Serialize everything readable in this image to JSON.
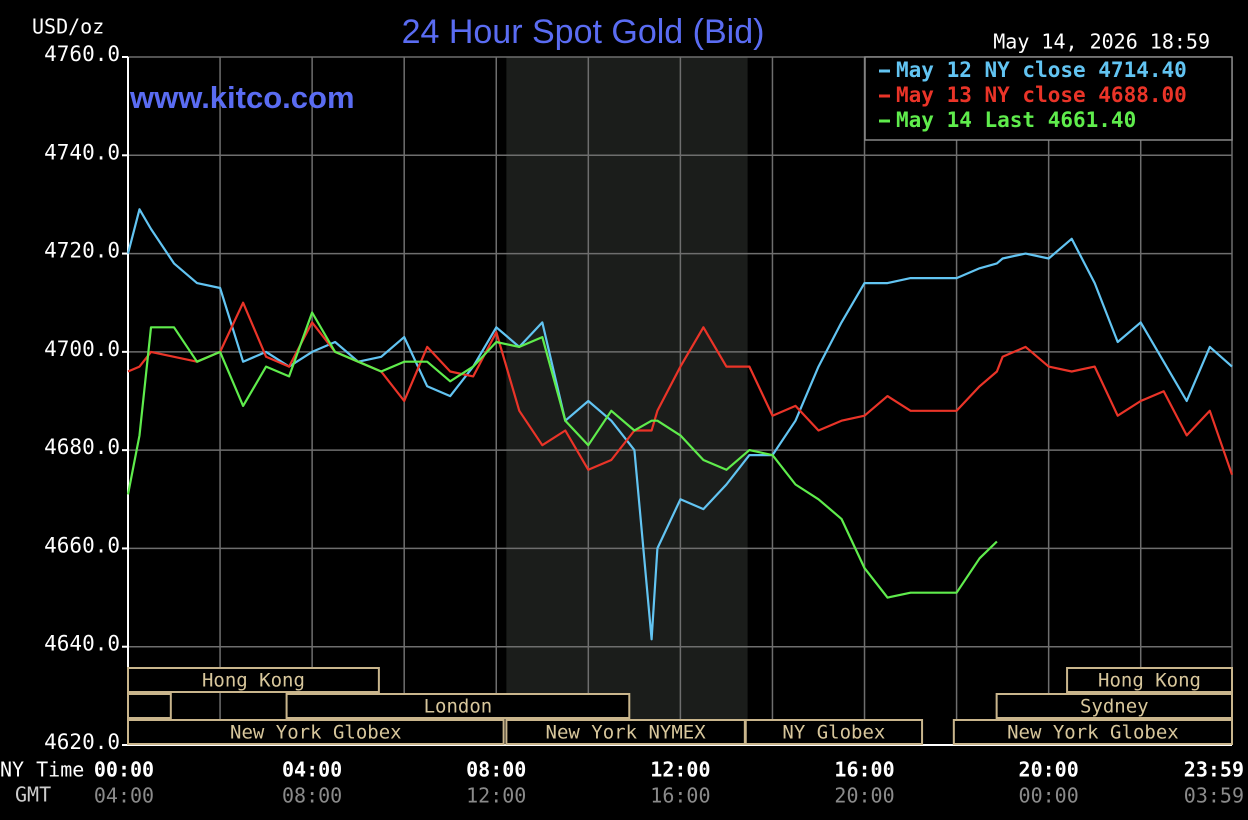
{
  "chart_data": {
    "type": "line",
    "title": "24 Hour Spot Gold (Bid)",
    "ylabel": "USD/oz",
    "timestamp": "May 14, 2026 18:59",
    "watermark": "www.kitco.com",
    "x_row_label": "NY Time",
    "x2_row_label": "GMT",
    "x": [
      0,
      0.25,
      0.5,
      1,
      1.5,
      2,
      2.5,
      3,
      3.5,
      4,
      4.5,
      5,
      5.5,
      6,
      6.5,
      7,
      7.5,
      8,
      8.5,
      9,
      9.5,
      10,
      10.5,
      11,
      11.375,
      11.5,
      12,
      12.5,
      13,
      13.5,
      14,
      14.5,
      15,
      15.5,
      16,
      16.5,
      17,
      17.5,
      18,
      18.5,
      18.875,
      19,
      19.5,
      20,
      20.5,
      21,
      21.5,
      22,
      22.5,
      23,
      23.5,
      23.983
    ],
    "series": [
      {
        "name": "May 12 NY close 4714.40",
        "color": "#62c4f2",
        "values": [
          4720,
          4729,
          4725,
          4718,
          4714,
          4713,
          4698,
          4700,
          4697,
          4700,
          4702,
          4698,
          4699,
          4703,
          4693,
          4691,
          4697,
          4705,
          4701,
          4706,
          4686,
          4690,
          4686,
          4680,
          4641.5,
          4660,
          4670,
          4668,
          4673,
          4679,
          4679,
          4686,
          4697,
          4706,
          4714,
          4714,
          4715,
          4715,
          4715,
          4717,
          4718,
          4719,
          4720,
          4719,
          4723,
          4714,
          4702,
          4706,
          4698,
          4690,
          4701,
          4697
        ]
      },
      {
        "name": "May 13 NY close 4688.00",
        "color": "#ea3428",
        "values": [
          4696,
          4697,
          4700,
          4699,
          4698,
          4700,
          4710,
          4699,
          4697,
          4706,
          4700,
          4698,
          4696,
          4690,
          4701,
          4696,
          4695,
          4704,
          4688,
          4681,
          4684,
          4676,
          4678,
          4684,
          4684,
          4688,
          4697,
          4705,
          4697,
          4697,
          4687,
          4689,
          4684,
          4686,
          4687,
          4691,
          4688,
          4688,
          4688,
          4693,
          4696,
          4699,
          4701,
          4697,
          4696,
          4697,
          4687,
          4690,
          4692,
          4683,
          4688,
          4675
        ]
      },
      {
        "name": "May 14 Last 4661.40",
        "color": "#5fec4c",
        "values": [
          4671,
          4683,
          4705,
          4705,
          4698,
          4700,
          4689,
          4697,
          4695,
          4708,
          4700,
          4698,
          4696,
          4698,
          4698,
          4694,
          4697,
          4702,
          4701,
          4703,
          4686,
          4681,
          4688,
          4684,
          4686,
          4686,
          4683,
          4678,
          4676,
          4680,
          4679,
          4673,
          4670,
          4666,
          4656,
          4650,
          4651,
          4651,
          4651,
          4658,
          4661.4,
          null,
          null,
          null,
          null,
          null,
          null,
          null,
          null,
          null,
          null,
          null
        ]
      }
    ],
    "xlim": [
      0,
      23.983
    ],
    "xticks": [
      {
        "value": 0,
        "label": "00:00",
        "gmt": "04:00"
      },
      {
        "value": 4,
        "label": "04:00",
        "gmt": "08:00"
      },
      {
        "value": 8,
        "label": "08:00",
        "gmt": "12:00"
      },
      {
        "value": 12,
        "label": "12:00",
        "gmt": "16:00"
      },
      {
        "value": 16,
        "label": "16:00",
        "gmt": "20:00"
      },
      {
        "value": 20,
        "label": "20:00",
        "gmt": "00:00"
      },
      {
        "value": 23.983,
        "label": "23:59",
        "gmt": "03:59"
      }
    ],
    "x_minor_grid": [
      2,
      6,
      10,
      14,
      18,
      22
    ],
    "ylim": [
      4620,
      4760
    ],
    "yticks": [
      {
        "value": 4620,
        "label": "4620.0"
      },
      {
        "value": 4640,
        "label": "4640.0"
      },
      {
        "value": 4660,
        "label": "4660.0"
      },
      {
        "value": 4680,
        "label": "4680.0"
      },
      {
        "value": 4700,
        "label": "4700.0"
      },
      {
        "value": 4720,
        "label": "4720.0"
      },
      {
        "value": 4740,
        "label": "4740.0"
      },
      {
        "value": 4760,
        "label": "4760.0"
      }
    ],
    "grid": true,
    "legend": "upper right",
    "shaded_x": [
      8.22,
      13.46
    ],
    "session_rows": [
      [
        {
          "label": "Hong Kong",
          "start": 0,
          "end": 5.45
        },
        {
          "label": "Hong Kong",
          "start": 20.4,
          "end": 23.983
        }
      ],
      [
        {
          "start": 0,
          "end": 0.93
        },
        {
          "label": "London",
          "start": 3.445,
          "end": 10.89
        },
        {
          "label": "Sydney",
          "start": 18.87,
          "end": 23.983
        }
      ],
      [
        {
          "label": "New York Globex",
          "start": 0,
          "end": 8.16
        },
        {
          "label": "New York NYMEX",
          "start": 8.22,
          "end": 13.4
        },
        {
          "label": "NY Globex",
          "start": 13.42,
          "end": 17.25
        },
        {
          "label": "New York Globex",
          "start": 17.94,
          "end": 23.983
        }
      ]
    ]
  }
}
